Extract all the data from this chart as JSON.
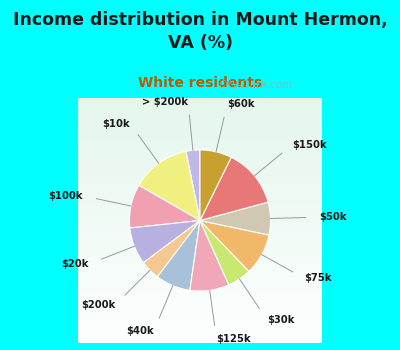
{
  "title": "Income distribution in Mount Hermon,\nVA (%)",
  "subtitle": "White residents",
  "title_color": "#1a1a1a",
  "subtitle_color": "#b85c00",
  "border_color": "#00ffff",
  "chart_bg_top": "#d8f0e8",
  "chart_bg_bottom": "#e8f8f0",
  "labels": [
    "> $200k",
    "$10k",
    "$100k",
    "$20k",
    "$200k",
    "$40k",
    "$125k",
    "$30k",
    "$75k",
    "$50k",
    "$150k",
    "$60k"
  ],
  "values": [
    3.2,
    13.5,
    10.0,
    8.5,
    4.5,
    8.0,
    9.0,
    5.5,
    9.5,
    7.5,
    13.5,
    7.3
  ],
  "colors": [
    "#c0b8e8",
    "#f0f080",
    "#f0a0b0",
    "#b8b0e0",
    "#f5c890",
    "#a8c0d8",
    "#f0a8b8",
    "#c8e870",
    "#f0b868",
    "#d0c8b0",
    "#e87878",
    "#c8a030"
  ],
  "figsize": [
    4.0,
    3.5
  ],
  "dpi": 100,
  "watermark": "City-Data.com",
  "border_width": 8
}
